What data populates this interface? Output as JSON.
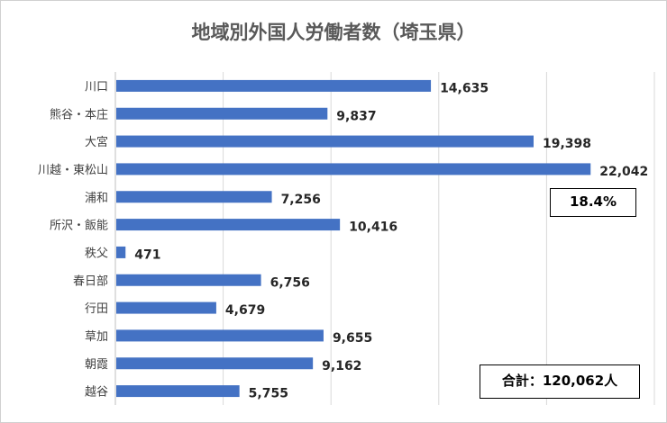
{
  "chart_data": {
    "type": "bar",
    "orientation": "horizontal",
    "title": "地域別外国人労働者数（埼玉県）",
    "categories": [
      "川口",
      "熊谷・本庄",
      "大宮",
      "川越・東松山",
      "浦和",
      "所沢・飯能",
      "秩父",
      "春日部",
      "行田",
      "草加",
      "朝霞",
      "越谷"
    ],
    "values": [
      14635,
      9837,
      19398,
      22042,
      7256,
      10416,
      471,
      6756,
      4679,
      9655,
      9162,
      5755
    ],
    "data_labels": [
      "14,635",
      "9,837",
      "19,398",
      "22,042",
      "7,256",
      "10,416",
      "471",
      "6,756",
      "4,679",
      "9,655",
      "9,162",
      "5,755"
    ],
    "xlim": [
      0,
      25000
    ],
    "grid": true,
    "bar_color": "#4472C4",
    "gridline_color": "#D9D9D9"
  },
  "annotations": {
    "percent": "18.4%",
    "total": "合計：120,062人"
  }
}
